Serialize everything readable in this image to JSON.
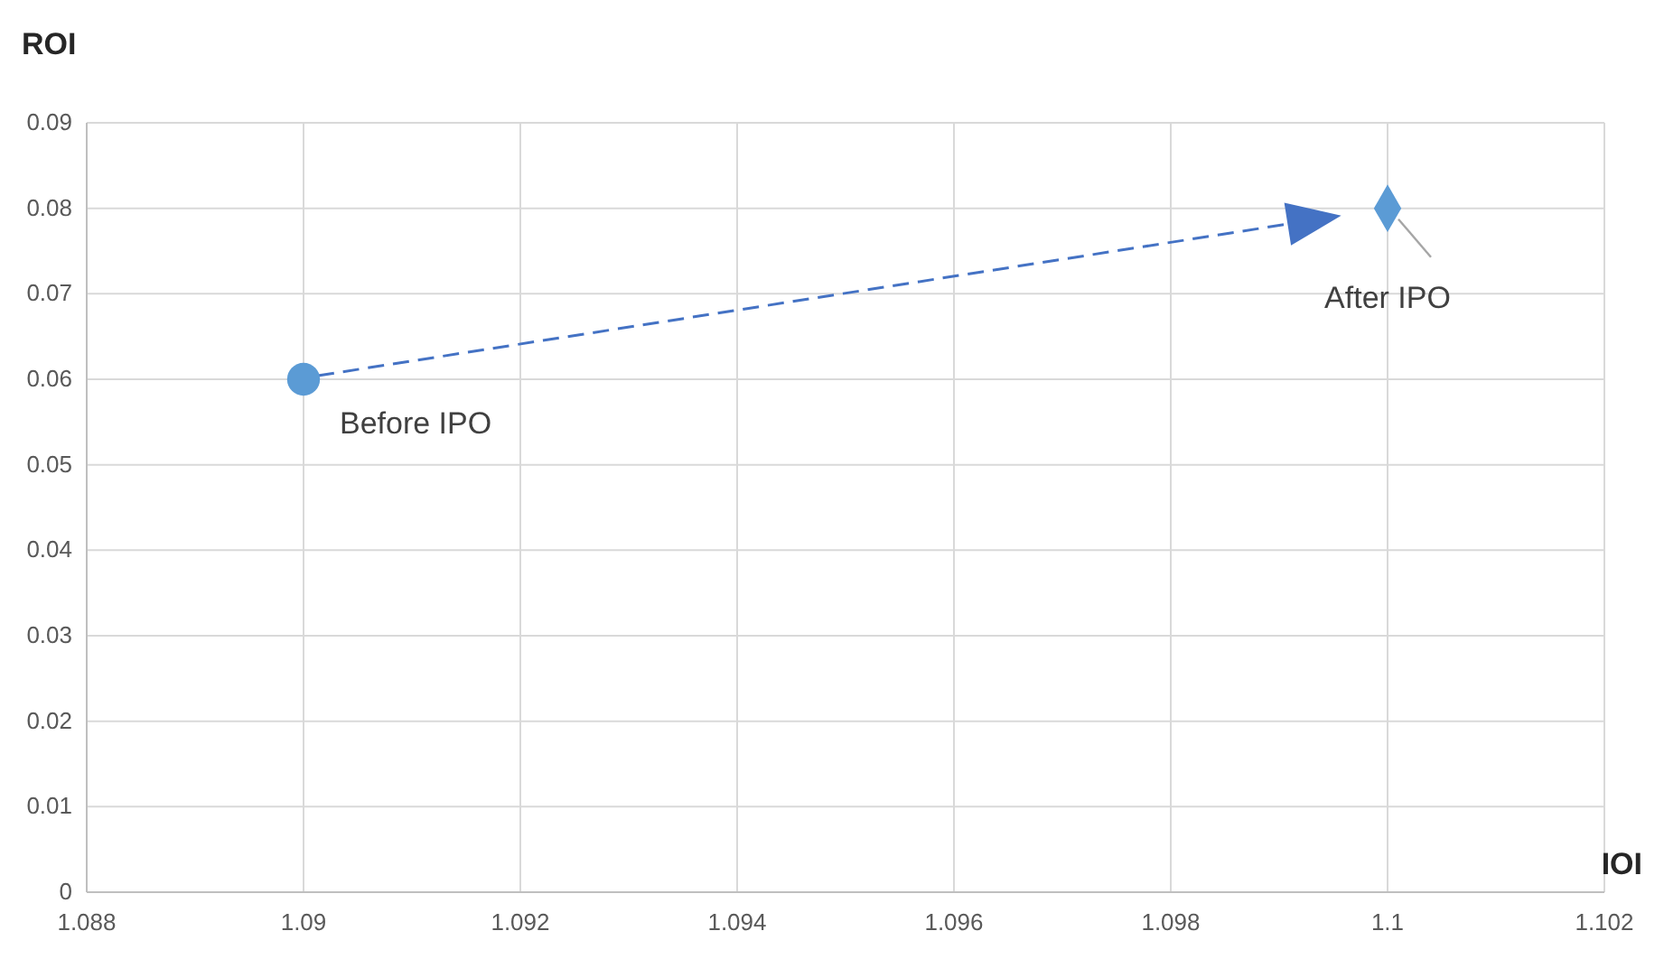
{
  "chart_data": {
    "type": "scatter",
    "xlabel": "IOI",
    "ylabel": "ROI",
    "xlim": [
      1.088,
      1.102
    ],
    "xticks": [
      1.088,
      1.09,
      1.092,
      1.094,
      1.096,
      1.098,
      1.1,
      1.102
    ],
    "ylim": [
      0,
      0.09
    ],
    "yticks": [
      0,
      0.01,
      0.02,
      0.03,
      0.04,
      0.05,
      0.06,
      0.07,
      0.08,
      0.09
    ],
    "grid": true,
    "series": [
      {
        "name": "Before IPO",
        "color": "#5b9bd5",
        "marker": "circle",
        "x": [
          1.09
        ],
        "values": [
          0.06
        ]
      },
      {
        "name": "After IPO",
        "color": "#5b9bd5",
        "marker": "diamond",
        "x": [
          1.1
        ],
        "values": [
          0.08
        ]
      }
    ]
  }
}
